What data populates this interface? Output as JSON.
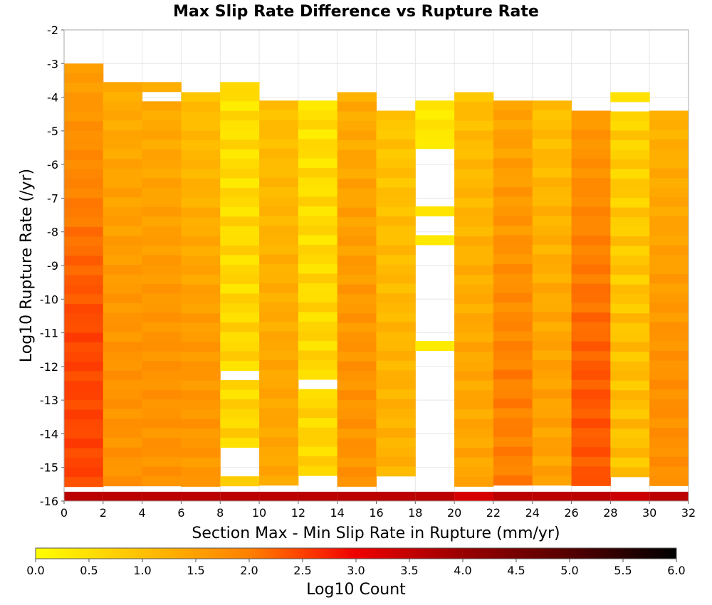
{
  "chart_data": {
    "type": "heatmap",
    "title": "Max Slip Rate Difference vs Rupture Rate",
    "xlabel": "Section Max - Min Slip Rate in Rupture (mm/yr)",
    "ylabel": "Log10 Rupture Rate (/yr)",
    "xlim": [
      0,
      32
    ],
    "ylim": [
      -16,
      -2
    ],
    "x_ticks": [
      "0",
      "2",
      "4",
      "6",
      "8",
      "10",
      "12",
      "14",
      "16",
      "18",
      "20",
      "22",
      "24",
      "26",
      "28",
      "30",
      "32"
    ],
    "y_ticks": [
      "-2",
      "-3",
      "-4",
      "-5",
      "-6",
      "-7",
      "-8",
      "-9",
      "-10",
      "-11",
      "-12",
      "-13",
      "-14",
      "-15",
      "-16"
    ],
    "x_bin_width": 2,
    "y_bin_height": 0.2857,
    "color_scale": {
      "label": "Log10 Count",
      "min": 0.0,
      "max": 6.0,
      "ticks": [
        "0.0",
        "0.5",
        "1.0",
        "1.5",
        "2.0",
        "2.5",
        "3.0",
        "3.5",
        "4.0",
        "4.5",
        "5.0",
        "5.5",
        "6.0"
      ],
      "stops": [
        {
          "value": 0.0,
          "color": "#ffff00"
        },
        {
          "value": 1.0,
          "color": "#ffc000"
        },
        {
          "value": 2.0,
          "color": "#ff8000"
        },
        {
          "value": 2.5,
          "color": "#ff4000"
        },
        {
          "value": 3.0,
          "color": "#ee0000"
        },
        {
          "value": 4.0,
          "color": "#990000"
        },
        {
          "value": 5.0,
          "color": "#550000"
        },
        {
          "value": 6.0,
          "color": "#000000"
        }
      ]
    },
    "columns": [
      {
        "x0": 0,
        "y_top": -3.0,
        "base": 1.5,
        "slope": 0.12,
        "jitter": 0.1,
        "bottom": 3.6,
        "gaps": []
      },
      {
        "x0": 2,
        "y_top": -3.55,
        "base": 1.3,
        "slope": 0.05,
        "jitter": 0.12,
        "bottom": 3.6,
        "gaps": []
      },
      {
        "x0": 4,
        "y_top": -3.55,
        "base": 1.3,
        "slope": 0.05,
        "jitter": 0.12,
        "bottom": 3.6,
        "gaps": [
          [
            -4.1,
            -3.85
          ]
        ]
      },
      {
        "x0": 6,
        "y_top": -3.85,
        "base": 1.0,
        "slope": 0.08,
        "jitter": 0.12,
        "bottom": 3.6,
        "gaps": []
      },
      {
        "x0": 8,
        "y_top": -3.55,
        "base": 0.5,
        "slope": 0.02,
        "jitter": 0.25,
        "bottom": 3.6,
        "gaps": [
          [
            -12.4,
            -12.1
          ],
          [
            -15.3,
            -14.5
          ],
          [
            -15.9,
            -15.65
          ]
        ]
      },
      {
        "x0": 10,
        "y_top": -4.1,
        "base": 1.0,
        "slope": 0.05,
        "jitter": 0.12,
        "bottom": 3.6,
        "gaps": []
      },
      {
        "x0": 12,
        "y_top": -4.1,
        "base": 0.5,
        "slope": 0.02,
        "jitter": 0.25,
        "bottom": 3.6,
        "gaps": [
          [
            -12.7,
            -12.4
          ],
          [
            -15.9,
            -15.3
          ]
        ]
      },
      {
        "x0": 14,
        "y_top": -3.85,
        "base": 1.3,
        "slope": 0.05,
        "jitter": 0.15,
        "bottom": 3.6,
        "gaps": []
      },
      {
        "x0": 16,
        "y_top": -4.4,
        "base": 0.9,
        "slope": 0.04,
        "jitter": 0.15,
        "bottom": 3.6,
        "gaps": [
          [
            -15.9,
            -15.3
          ]
        ]
      },
      {
        "x0": 18,
        "y_top": -4.1,
        "base": 0.4,
        "slope": 0.0,
        "jitter": 0.15,
        "bottom": 3.6,
        "gaps": [
          [
            -7.3,
            -5.55
          ],
          [
            -8.1,
            -7.6
          ],
          [
            -11.3,
            -8.4
          ],
          [
            -15.9,
            -11.6
          ]
        ]
      },
      {
        "x0": 20,
        "y_top": -3.85,
        "base": 1.0,
        "slope": 0.05,
        "jitter": 0.15,
        "bottom": 3.3,
        "gaps": []
      },
      {
        "x0": 22,
        "y_top": -4.1,
        "base": 1.4,
        "slope": 0.07,
        "jitter": 0.15,
        "bottom": 3.6,
        "gaps": []
      },
      {
        "x0": 24,
        "y_top": -4.1,
        "base": 1.0,
        "slope": 0.06,
        "jitter": 0.15,
        "bottom": 3.6,
        "gaps": []
      },
      {
        "x0": 26,
        "y_top": -4.4,
        "base": 1.6,
        "slope": 0.09,
        "jitter": 0.12,
        "bottom": 3.6,
        "gaps": []
      },
      {
        "x0": 28,
        "y_top": -3.85,
        "base": 0.7,
        "slope": 0.04,
        "jitter": 0.25,
        "bottom": 3.4,
        "gaps": [
          [
            -4.4,
            -4.1
          ],
          [
            -15.9,
            -15.3
          ]
        ]
      },
      {
        "x0": 30,
        "y_top": -4.4,
        "base": 1.2,
        "slope": 0.07,
        "jitter": 0.12,
        "bottom": 3.6,
        "gaps": []
      }
    ]
  }
}
